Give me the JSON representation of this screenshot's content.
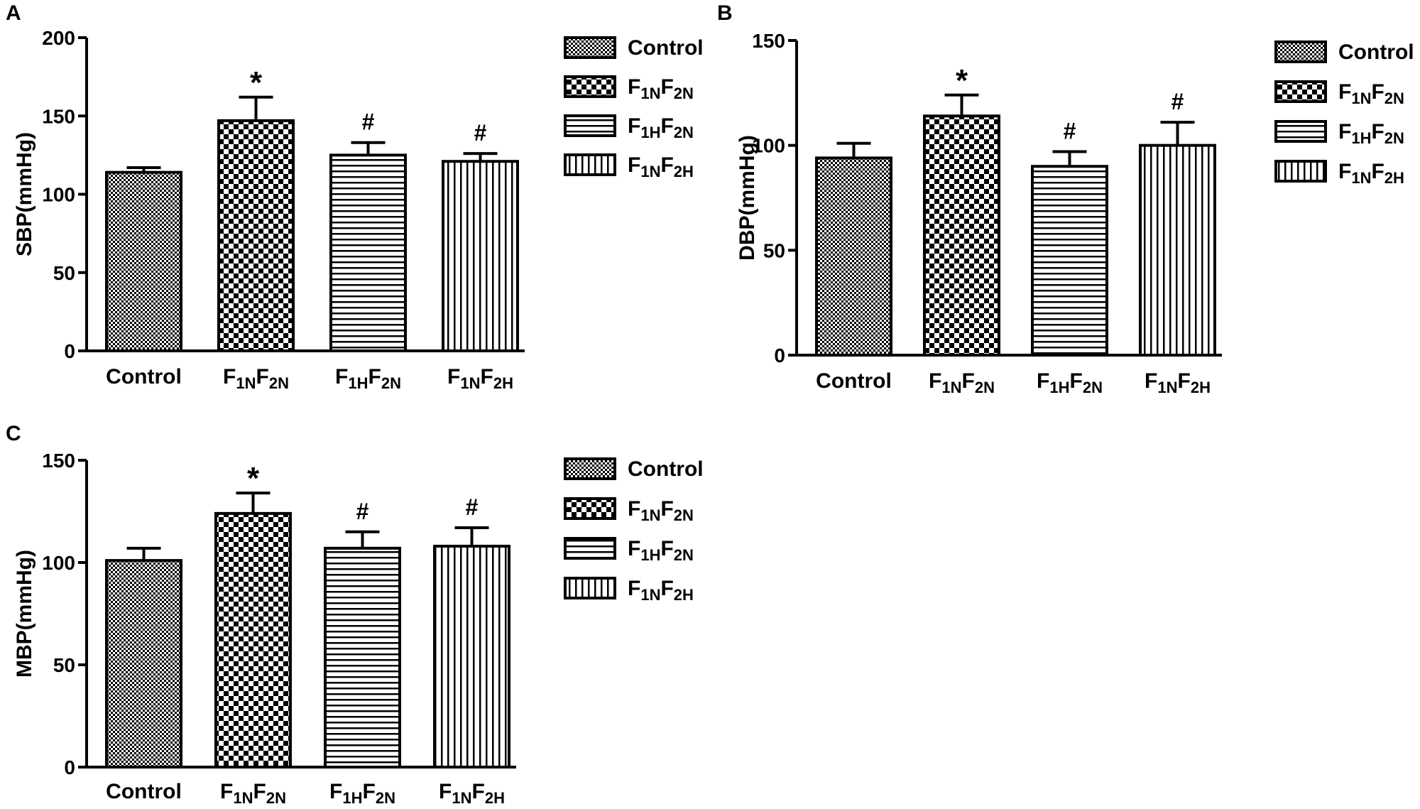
{
  "colors": {
    "bar_stroke": "#000000",
    "bar_fill": "#ffffff",
    "pattern_ink": "#000000"
  },
  "chart_data": [
    {
      "panel": "A",
      "type": "bar",
      "ylabel": "SBP(mmHg)",
      "ylim": [
        0,
        200
      ],
      "yticks": [
        0,
        50,
        100,
        150,
        200
      ],
      "categories": [
        {
          "main": "F",
          "sub1": "",
          "sub2": "",
          "full": "Control"
        },
        {
          "main": "F",
          "sub1": "1N",
          "sub2": "2N",
          "full": "F1NF2N"
        },
        {
          "main": "F",
          "sub1": "1H",
          "sub2": "2N",
          "full": "F1HF2N"
        },
        {
          "main": "F",
          "sub1": "1N",
          "sub2": "2H",
          "full": "F1NF2H"
        }
      ],
      "values": [
        114,
        147,
        125,
        121
      ],
      "errors": [
        3,
        15,
        8,
        5
      ],
      "annotations": [
        "",
        "*",
        "#",
        "#"
      ],
      "legend": [
        "Control",
        "F1NF2N",
        "F1HF2N",
        "F1NF2H"
      ],
      "legend_position": "right",
      "grid": false
    },
    {
      "panel": "B",
      "type": "bar",
      "ylabel": "DBP(mmHg)",
      "ylim": [
        0,
        150
      ],
      "yticks": [
        0,
        50,
        100,
        150
      ],
      "categories": [
        "Control",
        "F1NF2N",
        "F1HF2N",
        "F1NF2H"
      ],
      "values": [
        94,
        114,
        90,
        100
      ],
      "errors": [
        7,
        10,
        7,
        11
      ],
      "annotations": [
        "",
        "*",
        "#",
        "#"
      ],
      "legend": [
        "Control",
        "F1NF2N",
        "F1HF2N",
        "F1NF2H"
      ],
      "legend_position": "right",
      "grid": false
    },
    {
      "panel": "C",
      "type": "bar",
      "ylabel": "MBP(mmHg)",
      "ylim": [
        0,
        150
      ],
      "yticks": [
        0,
        50,
        100,
        150
      ],
      "categories": [
        "Control",
        "F1NF2N",
        "F1HF2N",
        "F1NF2H"
      ],
      "values": [
        101,
        124,
        107,
        108
      ],
      "errors": [
        6,
        10,
        8,
        9
      ],
      "annotations": [
        "",
        "*",
        "#",
        "#"
      ],
      "legend": [
        "Control",
        "F1NF2N",
        "F1HF2N",
        "F1NF2H"
      ],
      "legend_position": "right",
      "grid": false
    }
  ]
}
